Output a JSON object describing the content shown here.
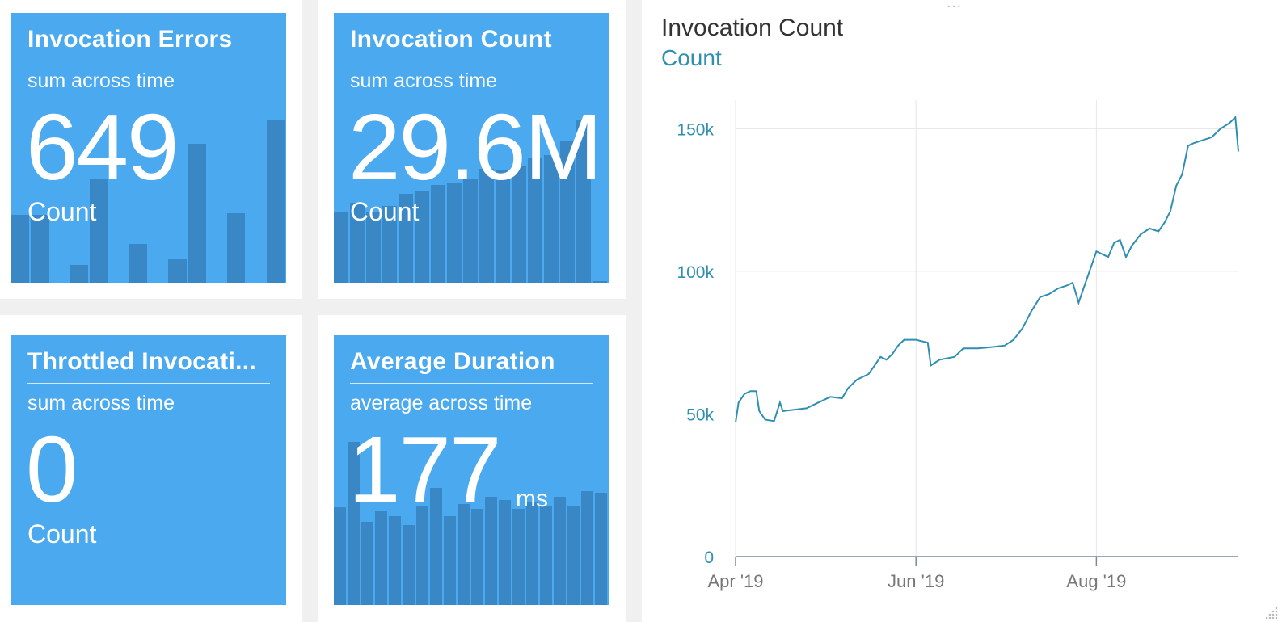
{
  "tiles": [
    {
      "title": "Invocation Errors",
      "subtitle": "sum across time",
      "value": "649",
      "unit": "Count",
      "bars": [
        0.38,
        0.38,
        0,
        0.1,
        0.58,
        0,
        0.22,
        0,
        0.13,
        0.78,
        0,
        0.39,
        0,
        0.92
      ]
    },
    {
      "title": "Invocation Count",
      "subtitle": "sum across time",
      "value": "29.6M",
      "unit": "Count",
      "bars": [
        0.4,
        0.45,
        0.4,
        0.43,
        0.5,
        0.52,
        0.55,
        0.56,
        0.58,
        0.64,
        0.63,
        0.66,
        0.7,
        0.72,
        0.8,
        0.92,
        0.01
      ]
    },
    {
      "title": "Throttled Invocati...",
      "subtitle": "sum across time",
      "value": "0",
      "unit": "Count",
      "bars": []
    },
    {
      "title": "Average Duration",
      "subtitle": "average across time",
      "value": "177",
      "unit": "ms",
      "bars": [
        0.55,
        0.92,
        0.47,
        0.53,
        0.5,
        0.45,
        0.56,
        0.66,
        0.5,
        0.57,
        0.54,
        0.61,
        0.59,
        0.54,
        0.58,
        0.56,
        0.61,
        0.56,
        0.64,
        0.63
      ]
    }
  ],
  "chart": {
    "title": "Invocation Count",
    "subtitle": "Count",
    "handle": "…"
  },
  "colors": {
    "tile": "#4aa9ef",
    "tile_bar": "#3a87c6",
    "line": "#2f8fb0",
    "axis_text": "#2f8fb0"
  },
  "chart_data": {
    "type": "line",
    "title": "Invocation Count",
    "ylabel": "Count",
    "x_ticks": [
      "Apr '19",
      "Jun '19",
      "Aug '19"
    ],
    "y_ticks": [
      "0",
      "50k",
      "100k",
      "150k"
    ],
    "xlim": [
      "2019-04-01",
      "2019-09-18"
    ],
    "ylim": [
      0,
      160000
    ],
    "grid": true,
    "series": [
      {
        "values": [
          [
            "2019-04-01",
            47000
          ],
          [
            "2019-04-02",
            54000
          ],
          [
            "2019-04-04",
            57000
          ],
          [
            "2019-04-06",
            58000
          ],
          [
            "2019-04-08",
            58000
          ],
          [
            "2019-04-09",
            51000
          ],
          [
            "2019-04-11",
            48000
          ],
          [
            "2019-04-14",
            47500
          ],
          [
            "2019-04-16",
            54000
          ],
          [
            "2019-04-17",
            51000
          ],
          [
            "2019-04-21",
            51500
          ],
          [
            "2019-04-25",
            52000
          ],
          [
            "2019-04-29",
            54000
          ],
          [
            "2019-05-03",
            56000
          ],
          [
            "2019-05-07",
            55500
          ],
          [
            "2019-05-09",
            59000
          ],
          [
            "2019-05-12",
            62000
          ],
          [
            "2019-05-14",
            63000
          ],
          [
            "2019-05-16",
            64000
          ],
          [
            "2019-05-18",
            67000
          ],
          [
            "2019-05-20",
            70000
          ],
          [
            "2019-05-22",
            69000
          ],
          [
            "2019-05-24",
            71000
          ],
          [
            "2019-05-26",
            74000
          ],
          [
            "2019-05-28",
            76000
          ],
          [
            "2019-06-01",
            76000
          ],
          [
            "2019-06-05",
            75000
          ],
          [
            "2019-06-06",
            67000
          ],
          [
            "2019-06-09",
            69000
          ],
          [
            "2019-06-14",
            70000
          ],
          [
            "2019-06-17",
            73000
          ],
          [
            "2019-06-22",
            73000
          ],
          [
            "2019-06-27",
            73500
          ],
          [
            "2019-07-01",
            74000
          ],
          [
            "2019-07-04",
            76000
          ],
          [
            "2019-07-07",
            80000
          ],
          [
            "2019-07-10",
            86000
          ],
          [
            "2019-07-13",
            91000
          ],
          [
            "2019-07-16",
            92000
          ],
          [
            "2019-07-19",
            94000
          ],
          [
            "2019-07-22",
            95000
          ],
          [
            "2019-07-24",
            96000
          ],
          [
            "2019-07-26",
            89000
          ],
          [
            "2019-07-28",
            95000
          ],
          [
            "2019-07-30",
            101000
          ],
          [
            "2019-08-01",
            107000
          ],
          [
            "2019-08-03",
            106000
          ],
          [
            "2019-08-05",
            105000
          ],
          [
            "2019-08-07",
            110000
          ],
          [
            "2019-08-09",
            111000
          ],
          [
            "2019-08-11",
            105000
          ],
          [
            "2019-08-13",
            109000
          ],
          [
            "2019-08-16",
            113000
          ],
          [
            "2019-08-19",
            115000
          ],
          [
            "2019-08-22",
            114000
          ],
          [
            "2019-08-24",
            117000
          ],
          [
            "2019-08-26",
            121000
          ],
          [
            "2019-08-28",
            130000
          ],
          [
            "2019-08-30",
            134000
          ],
          [
            "2019-09-01",
            144000
          ],
          [
            "2019-09-03",
            145000
          ],
          [
            "2019-09-06",
            146000
          ],
          [
            "2019-09-09",
            147000
          ],
          [
            "2019-09-12",
            150000
          ],
          [
            "2019-09-15",
            152000
          ],
          [
            "2019-09-17",
            154000
          ],
          [
            "2019-09-18",
            142000
          ]
        ]
      }
    ]
  }
}
